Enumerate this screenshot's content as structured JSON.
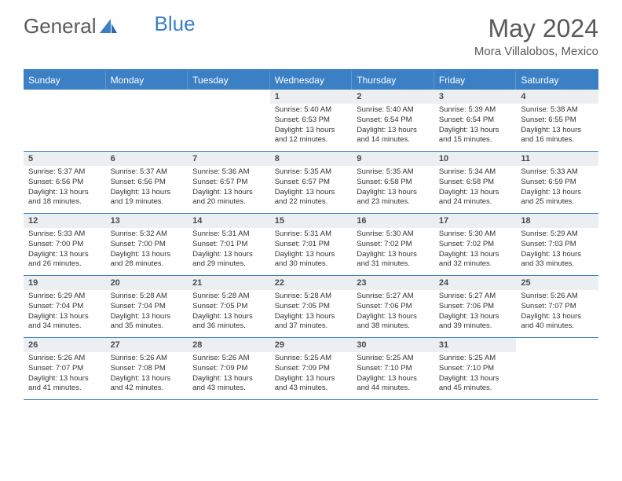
{
  "logo": {
    "text_a": "General",
    "text_b": "Blue"
  },
  "title": "May 2024",
  "location": "Mora Villalobos, Mexico",
  "colors": {
    "accent": "#3b7fc4",
    "header_bg": "#eceff1",
    "text": "#333333"
  },
  "day_headers": [
    "Sunday",
    "Monday",
    "Tuesday",
    "Wednesday",
    "Thursday",
    "Friday",
    "Saturday"
  ],
  "weeks": [
    [
      {
        "empty": true
      },
      {
        "empty": true
      },
      {
        "empty": true
      },
      {
        "num": "1",
        "sunrise": "Sunrise: 5:40 AM",
        "sunset": "Sunset: 6:53 PM",
        "day1": "Daylight: 13 hours",
        "day2": "and 12 minutes."
      },
      {
        "num": "2",
        "sunrise": "Sunrise: 5:40 AM",
        "sunset": "Sunset: 6:54 PM",
        "day1": "Daylight: 13 hours",
        "day2": "and 14 minutes."
      },
      {
        "num": "3",
        "sunrise": "Sunrise: 5:39 AM",
        "sunset": "Sunset: 6:54 PM",
        "day1": "Daylight: 13 hours",
        "day2": "and 15 minutes."
      },
      {
        "num": "4",
        "sunrise": "Sunrise: 5:38 AM",
        "sunset": "Sunset: 6:55 PM",
        "day1": "Daylight: 13 hours",
        "day2": "and 16 minutes."
      }
    ],
    [
      {
        "num": "5",
        "sunrise": "Sunrise: 5:37 AM",
        "sunset": "Sunset: 6:56 PM",
        "day1": "Daylight: 13 hours",
        "day2": "and 18 minutes."
      },
      {
        "num": "6",
        "sunrise": "Sunrise: 5:37 AM",
        "sunset": "Sunset: 6:56 PM",
        "day1": "Daylight: 13 hours",
        "day2": "and 19 minutes."
      },
      {
        "num": "7",
        "sunrise": "Sunrise: 5:36 AM",
        "sunset": "Sunset: 6:57 PM",
        "day1": "Daylight: 13 hours",
        "day2": "and 20 minutes."
      },
      {
        "num": "8",
        "sunrise": "Sunrise: 5:35 AM",
        "sunset": "Sunset: 6:57 PM",
        "day1": "Daylight: 13 hours",
        "day2": "and 22 minutes."
      },
      {
        "num": "9",
        "sunrise": "Sunrise: 5:35 AM",
        "sunset": "Sunset: 6:58 PM",
        "day1": "Daylight: 13 hours",
        "day2": "and 23 minutes."
      },
      {
        "num": "10",
        "sunrise": "Sunrise: 5:34 AM",
        "sunset": "Sunset: 6:58 PM",
        "day1": "Daylight: 13 hours",
        "day2": "and 24 minutes."
      },
      {
        "num": "11",
        "sunrise": "Sunrise: 5:33 AM",
        "sunset": "Sunset: 6:59 PM",
        "day1": "Daylight: 13 hours",
        "day2": "and 25 minutes."
      }
    ],
    [
      {
        "num": "12",
        "sunrise": "Sunrise: 5:33 AM",
        "sunset": "Sunset: 7:00 PM",
        "day1": "Daylight: 13 hours",
        "day2": "and 26 minutes."
      },
      {
        "num": "13",
        "sunrise": "Sunrise: 5:32 AM",
        "sunset": "Sunset: 7:00 PM",
        "day1": "Daylight: 13 hours",
        "day2": "and 28 minutes."
      },
      {
        "num": "14",
        "sunrise": "Sunrise: 5:31 AM",
        "sunset": "Sunset: 7:01 PM",
        "day1": "Daylight: 13 hours",
        "day2": "and 29 minutes."
      },
      {
        "num": "15",
        "sunrise": "Sunrise: 5:31 AM",
        "sunset": "Sunset: 7:01 PM",
        "day1": "Daylight: 13 hours",
        "day2": "and 30 minutes."
      },
      {
        "num": "16",
        "sunrise": "Sunrise: 5:30 AM",
        "sunset": "Sunset: 7:02 PM",
        "day1": "Daylight: 13 hours",
        "day2": "and 31 minutes."
      },
      {
        "num": "17",
        "sunrise": "Sunrise: 5:30 AM",
        "sunset": "Sunset: 7:02 PM",
        "day1": "Daylight: 13 hours",
        "day2": "and 32 minutes."
      },
      {
        "num": "18",
        "sunrise": "Sunrise: 5:29 AM",
        "sunset": "Sunset: 7:03 PM",
        "day1": "Daylight: 13 hours",
        "day2": "and 33 minutes."
      }
    ],
    [
      {
        "num": "19",
        "sunrise": "Sunrise: 5:29 AM",
        "sunset": "Sunset: 7:04 PM",
        "day1": "Daylight: 13 hours",
        "day2": "and 34 minutes."
      },
      {
        "num": "20",
        "sunrise": "Sunrise: 5:28 AM",
        "sunset": "Sunset: 7:04 PM",
        "day1": "Daylight: 13 hours",
        "day2": "and 35 minutes."
      },
      {
        "num": "21",
        "sunrise": "Sunrise: 5:28 AM",
        "sunset": "Sunset: 7:05 PM",
        "day1": "Daylight: 13 hours",
        "day2": "and 36 minutes."
      },
      {
        "num": "22",
        "sunrise": "Sunrise: 5:28 AM",
        "sunset": "Sunset: 7:05 PM",
        "day1": "Daylight: 13 hours",
        "day2": "and 37 minutes."
      },
      {
        "num": "23",
        "sunrise": "Sunrise: 5:27 AM",
        "sunset": "Sunset: 7:06 PM",
        "day1": "Daylight: 13 hours",
        "day2": "and 38 minutes."
      },
      {
        "num": "24",
        "sunrise": "Sunrise: 5:27 AM",
        "sunset": "Sunset: 7:06 PM",
        "day1": "Daylight: 13 hours",
        "day2": "and 39 minutes."
      },
      {
        "num": "25",
        "sunrise": "Sunrise: 5:26 AM",
        "sunset": "Sunset: 7:07 PM",
        "day1": "Daylight: 13 hours",
        "day2": "and 40 minutes."
      }
    ],
    [
      {
        "num": "26",
        "sunrise": "Sunrise: 5:26 AM",
        "sunset": "Sunset: 7:07 PM",
        "day1": "Daylight: 13 hours",
        "day2": "and 41 minutes."
      },
      {
        "num": "27",
        "sunrise": "Sunrise: 5:26 AM",
        "sunset": "Sunset: 7:08 PM",
        "day1": "Daylight: 13 hours",
        "day2": "and 42 minutes."
      },
      {
        "num": "28",
        "sunrise": "Sunrise: 5:26 AM",
        "sunset": "Sunset: 7:09 PM",
        "day1": "Daylight: 13 hours",
        "day2": "and 43 minutes."
      },
      {
        "num": "29",
        "sunrise": "Sunrise: 5:25 AM",
        "sunset": "Sunset: 7:09 PM",
        "day1": "Daylight: 13 hours",
        "day2": "and 43 minutes."
      },
      {
        "num": "30",
        "sunrise": "Sunrise: 5:25 AM",
        "sunset": "Sunset: 7:10 PM",
        "day1": "Daylight: 13 hours",
        "day2": "and 44 minutes."
      },
      {
        "num": "31",
        "sunrise": "Sunrise: 5:25 AM",
        "sunset": "Sunset: 7:10 PM",
        "day1": "Daylight: 13 hours",
        "day2": "and 45 minutes."
      },
      {
        "empty": true
      }
    ]
  ]
}
